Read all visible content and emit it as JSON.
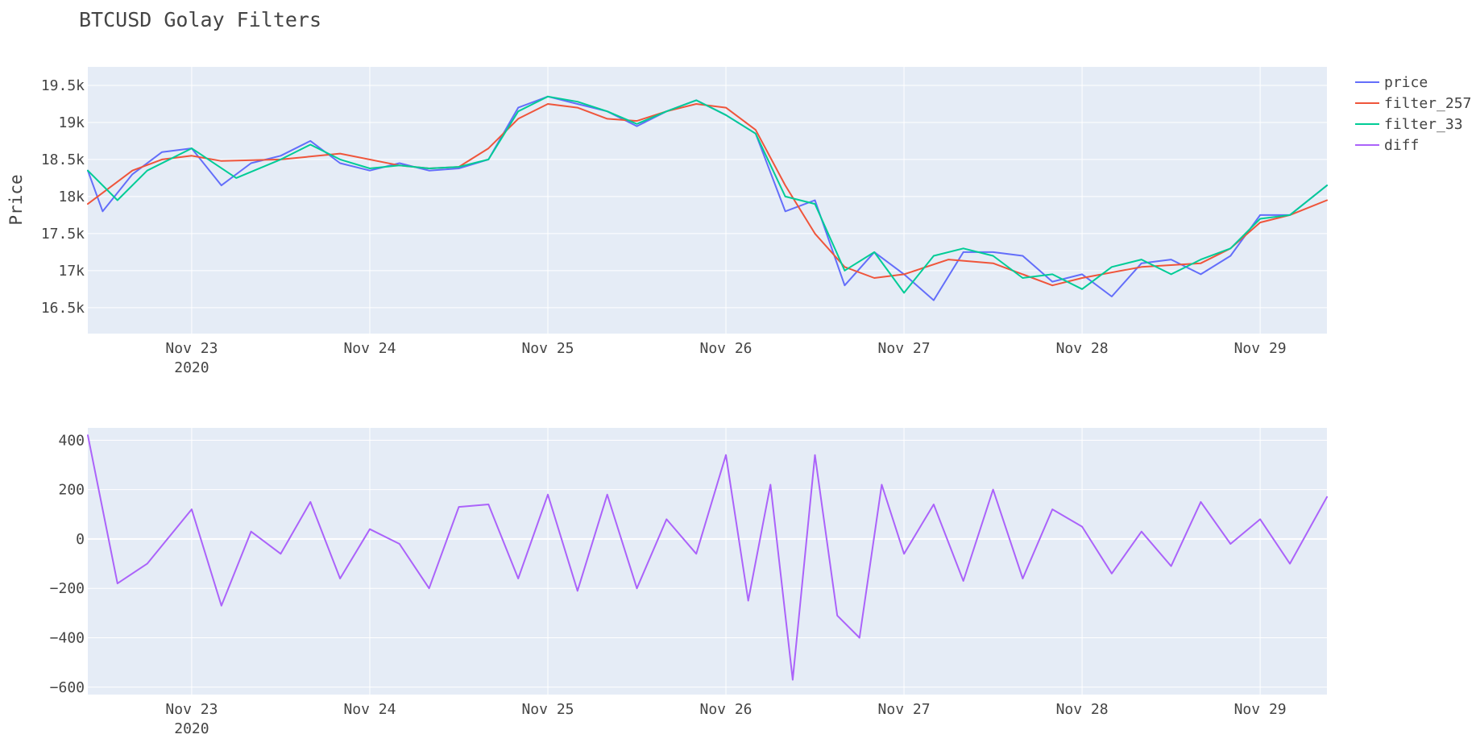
{
  "chart_data": [
    {
      "type": "line",
      "title": "BTCUSD Golay Filters",
      "xlabel": "",
      "ylabel": "Price",
      "x_range": [
        "2020-11-22 10:00",
        "2020-11-29 09:00"
      ],
      "x_ticks": [
        "Nov 23",
        "Nov 24",
        "Nov 25",
        "Nov 26",
        "Nov 27",
        "Nov 28",
        "Nov 29"
      ],
      "x_year_label": "2020",
      "ylim": [
        16150,
        19750
      ],
      "y_ticks": [
        "16.5k",
        "17k",
        "17.5k",
        "18k",
        "18.5k",
        "19k",
        "19.5k"
      ],
      "y_tick_values": [
        16500,
        17000,
        17500,
        18000,
        18500,
        19000,
        19500
      ],
      "grid": true,
      "legend_position": "top-right",
      "legend": [
        "price",
        "filter_257",
        "filter_33",
        "diff"
      ],
      "series": [
        {
          "name": "price",
          "color": "#636efa",
          "x": [
            "2020-11-22 10:00",
            "2020-11-22 12:00",
            "2020-11-22 16:00",
            "2020-11-22 20:00",
            "2020-11-23 00:00",
            "2020-11-23 04:00",
            "2020-11-23 08:00",
            "2020-11-23 12:00",
            "2020-11-23 16:00",
            "2020-11-23 20:00",
            "2020-11-24 00:00",
            "2020-11-24 04:00",
            "2020-11-24 08:00",
            "2020-11-24 12:00",
            "2020-11-24 16:00",
            "2020-11-24 20:00",
            "2020-11-25 00:00",
            "2020-11-25 04:00",
            "2020-11-25 08:00",
            "2020-11-25 12:00",
            "2020-11-25 16:00",
            "2020-11-25 20:00",
            "2020-11-26 00:00",
            "2020-11-26 04:00",
            "2020-11-26 08:00",
            "2020-11-26 12:00",
            "2020-11-26 16:00",
            "2020-11-26 20:00",
            "2020-11-27 00:00",
            "2020-11-27 04:00",
            "2020-11-27 08:00",
            "2020-11-27 12:00",
            "2020-11-27 16:00",
            "2020-11-27 20:00",
            "2020-11-28 00:00",
            "2020-11-28 04:00",
            "2020-11-28 08:00",
            "2020-11-28 12:00",
            "2020-11-28 16:00",
            "2020-11-28 20:00",
            "2020-11-29 00:00",
            "2020-11-29 04:00",
            "2020-11-29 09:00"
          ],
          "values": [
            18350,
            17800,
            18300,
            18600,
            18650,
            18150,
            18450,
            18550,
            18750,
            18450,
            18350,
            18450,
            18350,
            18380,
            18500,
            19200,
            19350,
            19250,
            19150,
            18950,
            19150,
            19300,
            19100,
            18850,
            17800,
            17950,
            16800,
            17250,
            16950,
            16600,
            17250,
            17250,
            17200,
            16850,
            16950,
            16650,
            17100,
            17150,
            16950,
            17200,
            17750,
            17750,
            18150
          ]
        },
        {
          "name": "filter_257",
          "color": "#ef553b",
          "x": [
            "2020-11-22 10:00",
            "2020-11-22 16:00",
            "2020-11-22 20:00",
            "2020-11-23 00:00",
            "2020-11-23 04:00",
            "2020-11-23 12:00",
            "2020-11-23 20:00",
            "2020-11-24 04:00",
            "2020-11-24 08:00",
            "2020-11-24 12:00",
            "2020-11-24 16:00",
            "2020-11-24 20:00",
            "2020-11-25 00:00",
            "2020-11-25 04:00",
            "2020-11-25 08:00",
            "2020-11-25 12:00",
            "2020-11-25 16:00",
            "2020-11-25 20:00",
            "2020-11-26 00:00",
            "2020-11-26 04:00",
            "2020-11-26 08:00",
            "2020-11-26 12:00",
            "2020-11-26 16:00",
            "2020-11-26 20:00",
            "2020-11-27 00:00",
            "2020-11-27 06:00",
            "2020-11-27 12:00",
            "2020-11-27 16:00",
            "2020-11-27 20:00",
            "2020-11-28 00:00",
            "2020-11-28 08:00",
            "2020-11-28 16:00",
            "2020-11-28 20:00",
            "2020-11-29 00:00",
            "2020-11-29 04:00",
            "2020-11-29 09:00"
          ],
          "values": [
            17900,
            18350,
            18500,
            18550,
            18480,
            18500,
            18580,
            18420,
            18380,
            18400,
            18650,
            19050,
            19250,
            19200,
            19050,
            19020,
            19150,
            19250,
            19200,
            18900,
            18150,
            17500,
            17050,
            16900,
            16950,
            17150,
            17100,
            16950,
            16800,
            16900,
            17050,
            17100,
            17300,
            17650,
            17750,
            17950
          ]
        },
        {
          "name": "filter_33",
          "color": "#00cc96",
          "x": [
            "2020-11-22 10:00",
            "2020-11-22 14:00",
            "2020-11-22 18:00",
            "2020-11-23 00:00",
            "2020-11-23 06:00",
            "2020-11-23 12:00",
            "2020-11-23 16:00",
            "2020-11-23 20:00",
            "2020-11-24 00:00",
            "2020-11-24 04:00",
            "2020-11-24 08:00",
            "2020-11-24 12:00",
            "2020-11-24 16:00",
            "2020-11-24 20:00",
            "2020-11-25 00:00",
            "2020-11-25 04:00",
            "2020-11-25 08:00",
            "2020-11-25 12:00",
            "2020-11-25 16:00",
            "2020-11-25 20:00",
            "2020-11-26 00:00",
            "2020-11-26 04:00",
            "2020-11-26 08:00",
            "2020-11-26 12:00",
            "2020-11-26 16:00",
            "2020-11-26 20:00",
            "2020-11-27 00:00",
            "2020-11-27 04:00",
            "2020-11-27 08:00",
            "2020-11-27 12:00",
            "2020-11-27 16:00",
            "2020-11-27 20:00",
            "2020-11-28 00:00",
            "2020-11-28 04:00",
            "2020-11-28 08:00",
            "2020-11-28 12:00",
            "2020-11-28 16:00",
            "2020-11-28 20:00",
            "2020-11-29 00:00",
            "2020-11-29 04:00",
            "2020-11-29 09:00"
          ],
          "values": [
            18350,
            17950,
            18350,
            18650,
            18250,
            18500,
            18700,
            18500,
            18380,
            18420,
            18380,
            18400,
            18500,
            19150,
            19350,
            19280,
            19150,
            18980,
            19150,
            19300,
            19100,
            18850,
            18000,
            17900,
            17000,
            17250,
            16700,
            17200,
            17300,
            17200,
            16900,
            16950,
            16750,
            17050,
            17150,
            16950,
            17150,
            17300,
            17700,
            17750,
            18150
          ]
        },
        {
          "name": "diff",
          "color": "#ab63fa",
          "axis": "y2"
        }
      ]
    },
    {
      "type": "line",
      "title": "",
      "xlabel": "",
      "ylabel": "",
      "x_range": [
        "2020-11-22 10:00",
        "2020-11-29 09:00"
      ],
      "x_ticks": [
        "Nov 23",
        "Nov 24",
        "Nov 25",
        "Nov 26",
        "Nov 27",
        "Nov 28",
        "Nov 29"
      ],
      "x_year_label": "2020",
      "ylim": [
        -630,
        450
      ],
      "y_ticks": [
        "400",
        "200",
        "0",
        "−200",
        "−400",
        "−600"
      ],
      "y_tick_values": [
        400,
        200,
        0,
        -200,
        -400,
        -600
      ],
      "grid": true,
      "series": [
        {
          "name": "diff",
          "color": "#ab63fa",
          "x": [
            "2020-11-22 10:00",
            "2020-11-22 14:00",
            "2020-11-22 18:00",
            "2020-11-23 00:00",
            "2020-11-23 04:00",
            "2020-11-23 08:00",
            "2020-11-23 12:00",
            "2020-11-23 16:00",
            "2020-11-23 20:00",
            "2020-11-24 00:00",
            "2020-11-24 04:00",
            "2020-11-24 08:00",
            "2020-11-24 12:00",
            "2020-11-24 16:00",
            "2020-11-24 20:00",
            "2020-11-25 00:00",
            "2020-11-25 04:00",
            "2020-11-25 08:00",
            "2020-11-25 12:00",
            "2020-11-25 16:00",
            "2020-11-25 20:00",
            "2020-11-26 00:00",
            "2020-11-26 03:00",
            "2020-11-26 06:00",
            "2020-11-26 09:00",
            "2020-11-26 12:00",
            "2020-11-26 15:00",
            "2020-11-26 18:00",
            "2020-11-26 21:00",
            "2020-11-27 00:00",
            "2020-11-27 04:00",
            "2020-11-27 08:00",
            "2020-11-27 12:00",
            "2020-11-27 16:00",
            "2020-11-27 20:00",
            "2020-11-28 00:00",
            "2020-11-28 04:00",
            "2020-11-28 08:00",
            "2020-11-28 12:00",
            "2020-11-28 16:00",
            "2020-11-28 20:00",
            "2020-11-29 00:00",
            "2020-11-29 04:00",
            "2020-11-29 09:00"
          ],
          "values": [
            420,
            -180,
            -100,
            120,
            -270,
            30,
            -60,
            150,
            -160,
            40,
            -20,
            -200,
            130,
            140,
            -160,
            180,
            -210,
            180,
            -200,
            80,
            -60,
            340,
            -250,
            220,
            -570,
            340,
            -310,
            -400,
            220,
            -60,
            140,
            -170,
            200,
            -160,
            120,
            50,
            -140,
            30,
            -110,
            150,
            -20,
            80,
            -100,
            170
          ]
        }
      ]
    }
  ]
}
